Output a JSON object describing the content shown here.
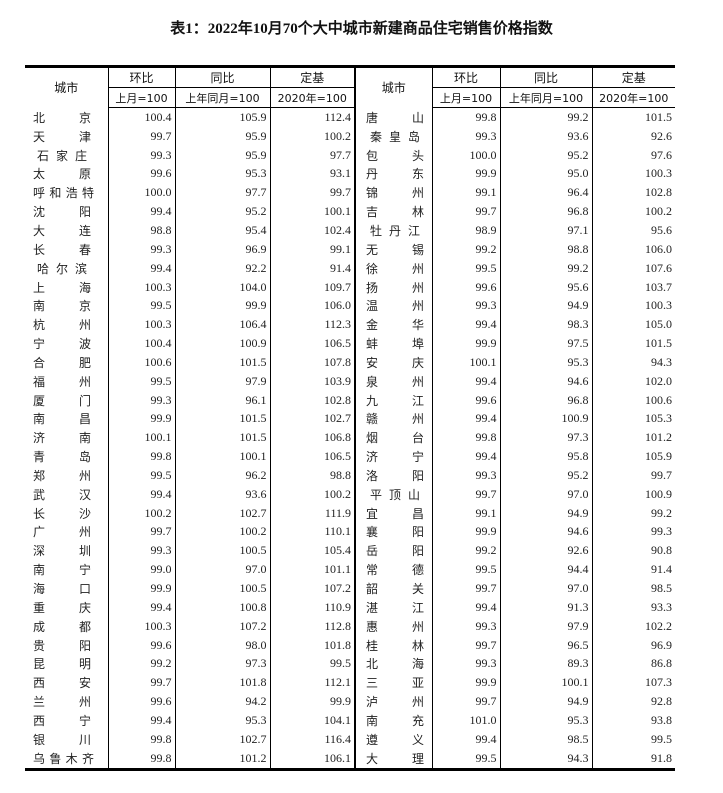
{
  "title": "表1：2022年10月70个大中城市新建商品住宅销售价格指数",
  "headers": {
    "city": "城市",
    "mom": "环比",
    "yoy": "同比",
    "fixed": "定基",
    "mom_base": "上月=100",
    "yoy_base": "上年同月=100",
    "fixed_base": "2020年=100"
  },
  "rows_left": [
    [
      "北京",
      "100.4",
      "105.9",
      "112.4"
    ],
    [
      "天津",
      "99.7",
      "95.9",
      "100.2"
    ],
    [
      "石家庄",
      "99.3",
      "95.9",
      "97.7"
    ],
    [
      "太原",
      "99.6",
      "95.3",
      "93.1"
    ],
    [
      "呼和浩特",
      "100.0",
      "97.7",
      "99.7"
    ],
    [
      "沈阳",
      "99.4",
      "95.2",
      "100.1"
    ],
    [
      "大连",
      "98.8",
      "95.4",
      "102.4"
    ],
    [
      "长春",
      "99.3",
      "96.9",
      "99.1"
    ],
    [
      "哈尔滨",
      "99.4",
      "92.2",
      "91.4"
    ],
    [
      "上海",
      "100.3",
      "104.0",
      "109.7"
    ],
    [
      "南京",
      "99.5",
      "99.9",
      "106.0"
    ],
    [
      "杭州",
      "100.3",
      "106.4",
      "112.3"
    ],
    [
      "宁波",
      "100.4",
      "100.9",
      "106.5"
    ],
    [
      "合肥",
      "100.6",
      "101.5",
      "107.8"
    ],
    [
      "福州",
      "99.5",
      "97.9",
      "103.9"
    ],
    [
      "厦门",
      "99.3",
      "96.1",
      "102.8"
    ],
    [
      "南昌",
      "99.9",
      "101.5",
      "102.7"
    ],
    [
      "济南",
      "100.1",
      "101.5",
      "106.8"
    ],
    [
      "青岛",
      "99.8",
      "100.1",
      "106.5"
    ],
    [
      "郑州",
      "99.5",
      "96.2",
      "98.8"
    ],
    [
      "武汉",
      "99.4",
      "93.6",
      "100.2"
    ],
    [
      "长沙",
      "100.2",
      "102.7",
      "111.9"
    ],
    [
      "广州",
      "99.7",
      "100.2",
      "110.1"
    ],
    [
      "深圳",
      "99.3",
      "100.5",
      "105.4"
    ],
    [
      "南宁",
      "99.0",
      "97.0",
      "101.1"
    ],
    [
      "海口",
      "99.9",
      "100.5",
      "107.2"
    ],
    [
      "重庆",
      "99.4",
      "100.8",
      "110.9"
    ],
    [
      "成都",
      "100.3",
      "107.2",
      "112.8"
    ],
    [
      "贵阳",
      "99.6",
      "98.0",
      "101.8"
    ],
    [
      "昆明",
      "99.2",
      "97.3",
      "99.5"
    ],
    [
      "西安",
      "99.7",
      "101.8",
      "112.1"
    ],
    [
      "兰州",
      "99.6",
      "94.2",
      "99.9"
    ],
    [
      "西宁",
      "99.4",
      "95.3",
      "104.1"
    ],
    [
      "银川",
      "99.8",
      "102.7",
      "116.4"
    ],
    [
      "乌鲁木齐",
      "99.8",
      "101.2",
      "106.1"
    ]
  ],
  "rows_right": [
    [
      "唐山",
      "99.8",
      "99.2",
      "101.5"
    ],
    [
      "秦皇岛",
      "99.3",
      "93.6",
      "92.6"
    ],
    [
      "包头",
      "100.0",
      "95.2",
      "97.6"
    ],
    [
      "丹东",
      "99.9",
      "95.0",
      "100.3"
    ],
    [
      "锦州",
      "99.1",
      "96.4",
      "102.8"
    ],
    [
      "吉林",
      "99.7",
      "96.8",
      "100.2"
    ],
    [
      "牡丹江",
      "98.9",
      "97.1",
      "95.6"
    ],
    [
      "无锡",
      "99.2",
      "98.8",
      "106.0"
    ],
    [
      "徐州",
      "99.5",
      "99.2",
      "107.6"
    ],
    [
      "扬州",
      "99.6",
      "95.6",
      "103.7"
    ],
    [
      "温州",
      "99.3",
      "94.9",
      "100.3"
    ],
    [
      "金华",
      "99.4",
      "98.3",
      "105.0"
    ],
    [
      "蚌埠",
      "99.9",
      "97.5",
      "101.5"
    ],
    [
      "安庆",
      "100.1",
      "95.3",
      "94.3"
    ],
    [
      "泉州",
      "99.4",
      "94.6",
      "102.0"
    ],
    [
      "九江",
      "99.6",
      "96.8",
      "100.6"
    ],
    [
      "赣州",
      "99.4",
      "100.9",
      "105.3"
    ],
    [
      "烟台",
      "99.8",
      "97.3",
      "101.2"
    ],
    [
      "济宁",
      "99.4",
      "95.8",
      "105.9"
    ],
    [
      "洛阳",
      "99.3",
      "95.2",
      "99.7"
    ],
    [
      "平顶山",
      "99.7",
      "97.0",
      "100.9"
    ],
    [
      "宜昌",
      "99.1",
      "94.9",
      "99.2"
    ],
    [
      "襄阳",
      "99.9",
      "94.6",
      "99.3"
    ],
    [
      "岳阳",
      "99.2",
      "92.6",
      "90.8"
    ],
    [
      "常德",
      "99.5",
      "94.4",
      "91.4"
    ],
    [
      "韶关",
      "99.7",
      "97.0",
      "98.5"
    ],
    [
      "湛江",
      "99.4",
      "91.3",
      "93.3"
    ],
    [
      "惠州",
      "99.3",
      "97.9",
      "102.2"
    ],
    [
      "桂林",
      "99.7",
      "96.5",
      "96.9"
    ],
    [
      "北海",
      "99.3",
      "89.3",
      "86.8"
    ],
    [
      "三亚",
      "99.9",
      "100.1",
      "107.3"
    ],
    [
      "泸州",
      "99.7",
      "94.9",
      "92.8"
    ],
    [
      "南充",
      "101.0",
      "95.3",
      "93.8"
    ],
    [
      "遵义",
      "99.4",
      "98.5",
      "99.5"
    ],
    [
      "大理",
      "99.5",
      "94.3",
      "91.8"
    ]
  ]
}
